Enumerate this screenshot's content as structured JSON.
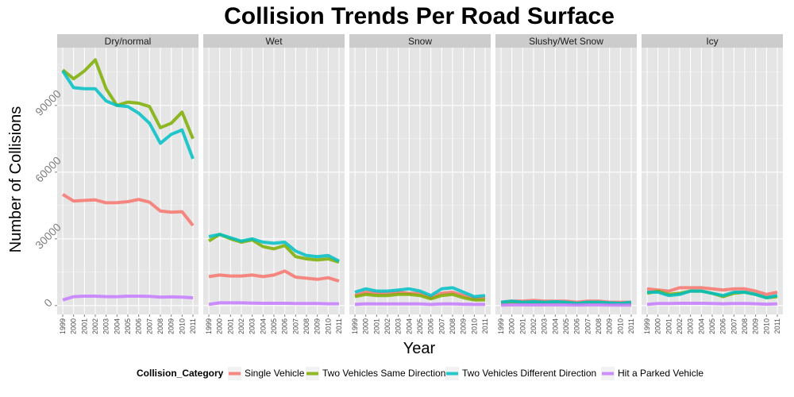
{
  "chart_data": {
    "type": "line",
    "title": "Collision Trends Per Road Surface",
    "xlabel": "Year",
    "ylabel": "Number of Collisions",
    "x": [
      1999,
      2000,
      2001,
      2002,
      2003,
      2004,
      2005,
      2006,
      2007,
      2008,
      2009,
      2010,
      2011
    ],
    "x_tick_labels": [
      "1999",
      "2000",
      "2001",
      "2002",
      "2003",
      "2004",
      "2005",
      "2006",
      "2007",
      "2008",
      "2009",
      "2010",
      "2011"
    ],
    "ylim": [
      -4000,
      116000
    ],
    "y_ticks": [
      0,
      30000,
      60000,
      90000
    ],
    "y_tick_labels": [
      "0",
      "30000",
      "60000",
      "90000"
    ],
    "grid": true,
    "legend": {
      "title": "Collision_Category",
      "position": "bottom"
    },
    "panels": [
      {
        "name": "Dry/normal",
        "series": [
          {
            "name": "Single Vehicle",
            "color": "#F8766D",
            "values": [
              50000,
              47000,
              47300,
              47500,
              46200,
              46300,
              46700,
              47700,
              46500,
              42500,
              42000,
              42200,
              36000
            ]
          },
          {
            "name": "Two Vehicles Same Direction",
            "color": "#7CAE00",
            "values": [
              106000,
              102000,
              105500,
              110500,
              97500,
              90000,
              91500,
              91000,
              89500,
              80000,
              82000,
              87000,
              75000
            ]
          },
          {
            "name": "Two Vehicles Different Direction",
            "color": "#00BFC4",
            "values": [
              105500,
              98000,
              97500,
              97500,
              92000,
              90000,
              89500,
              86500,
              82000,
              73000,
              77000,
              79000,
              66000
            ]
          },
          {
            "name": "Hit a Parked Vehicle",
            "color": "#C77CFF",
            "values": [
              2500,
              4000,
              4200,
              4200,
              4000,
              4000,
              4200,
              4200,
              4100,
              3800,
              3900,
              3800,
              3500
            ]
          }
        ]
      },
      {
        "name": "Wet",
        "series": [
          {
            "name": "Single Vehicle",
            "color": "#F8766D",
            "values": [
              13000,
              13700,
              13300,
              13300,
              13700,
              13000,
              13700,
              15500,
              12800,
              12300,
              11800,
              12500,
              11000
            ]
          },
          {
            "name": "Two Vehicles Same Direction",
            "color": "#7CAE00",
            "values": [
              29000,
              32000,
              30000,
              28500,
              29500,
              26500,
              25500,
              27000,
              22000,
              21000,
              20500,
              21000,
              19500
            ]
          },
          {
            "name": "Two Vehicles Different Direction",
            "color": "#00BFC4",
            "values": [
              31000,
              32000,
              30500,
              29000,
              30000,
              28500,
              28000,
              28500,
              24500,
              22500,
              22000,
              22500,
              20000
            ]
          },
          {
            "name": "Hit a Parked Vehicle",
            "color": "#C77CFF",
            "values": [
              500,
              1200,
              1200,
              1200,
              1100,
              1000,
              1000,
              1000,
              900,
              900,
              900,
              800,
              800
            ]
          }
        ]
      },
      {
        "name": "Snow",
        "series": [
          {
            "name": "Single Vehicle",
            "color": "#F8766D",
            "values": [
              4500,
              6000,
              5500,
              5500,
              6000,
              5500,
              5500,
              3500,
              5500,
              6000,
              4500,
              3000,
              3500
            ]
          },
          {
            "name": "Two Vehicles Same Direction",
            "color": "#7CAE00",
            "values": [
              4000,
              5000,
              4500,
              4500,
              5000,
              5000,
              4500,
              3000,
              4500,
              5000,
              3500,
              2500,
              2500
            ]
          },
          {
            "name": "Two Vehicles Different Direction",
            "color": "#00BFC4",
            "values": [
              6000,
              7500,
              6500,
              6500,
              7000,
              7500,
              6500,
              4500,
              7500,
              8000,
              6000,
              4000,
              4500
            ]
          },
          {
            "name": "Hit a Parked Vehicle",
            "color": "#C77CFF",
            "values": [
              500,
              800,
              700,
              700,
              700,
              700,
              700,
              500,
              700,
              700,
              600,
              500,
              500
            ]
          }
        ]
      },
      {
        "name": "Slushy/Wet Snow",
        "series": [
          {
            "name": "Single Vehicle",
            "color": "#F8766D",
            "values": [
              1500,
              2000,
              2000,
              2300,
              2000,
              2000,
              2000,
              1500,
              2000,
              2000,
              1500,
              1500,
              1500
            ]
          },
          {
            "name": "Two Vehicles Same Direction",
            "color": "#7CAE00",
            "values": [
              1000,
              1500,
              1200,
              1200,
              1200,
              1200,
              1200,
              800,
              1200,
              1200,
              900,
              800,
              1000
            ]
          },
          {
            "name": "Two Vehicles Different Direction",
            "color": "#00BFC4",
            "values": [
              1500,
              2000,
              1500,
              1700,
              1500,
              1700,
              1500,
              1000,
              1500,
              1500,
              1200,
              1000,
              1500
            ]
          },
          {
            "name": "Hit a Parked Vehicle",
            "color": "#C77CFF",
            "values": [
              200,
              300,
              300,
              300,
              300,
              300,
              300,
              200,
              300,
              300,
              200,
              200,
              200
            ]
          }
        ]
      },
      {
        "name": "Icy",
        "series": [
          {
            "name": "Single Vehicle",
            "color": "#F8766D",
            "values": [
              7500,
              7000,
              6500,
              8000,
              8000,
              8000,
              7500,
              7000,
              7500,
              7500,
              6500,
              5000,
              6000
            ]
          },
          {
            "name": "Two Vehicles Same Direction",
            "color": "#7CAE00",
            "values": [
              5500,
              6500,
              5000,
              5500,
              6500,
              6500,
              5500,
              4000,
              5500,
              6000,
              5000,
              3500,
              4000
            ]
          },
          {
            "name": "Two Vehicles Different Direction",
            "color": "#00BFC4",
            "values": [
              6000,
              6000,
              4500,
              5000,
              6500,
              6500,
              5500,
              4500,
              6000,
              6000,
              5000,
              3500,
              4500
            ]
          },
          {
            "name": "Hit a Parked Vehicle",
            "color": "#C77CFF",
            "values": [
              500,
              900,
              900,
              1000,
              1000,
              1000,
              900,
              800,
              900,
              900,
              800,
              600,
              700
            ]
          }
        ]
      }
    ]
  }
}
